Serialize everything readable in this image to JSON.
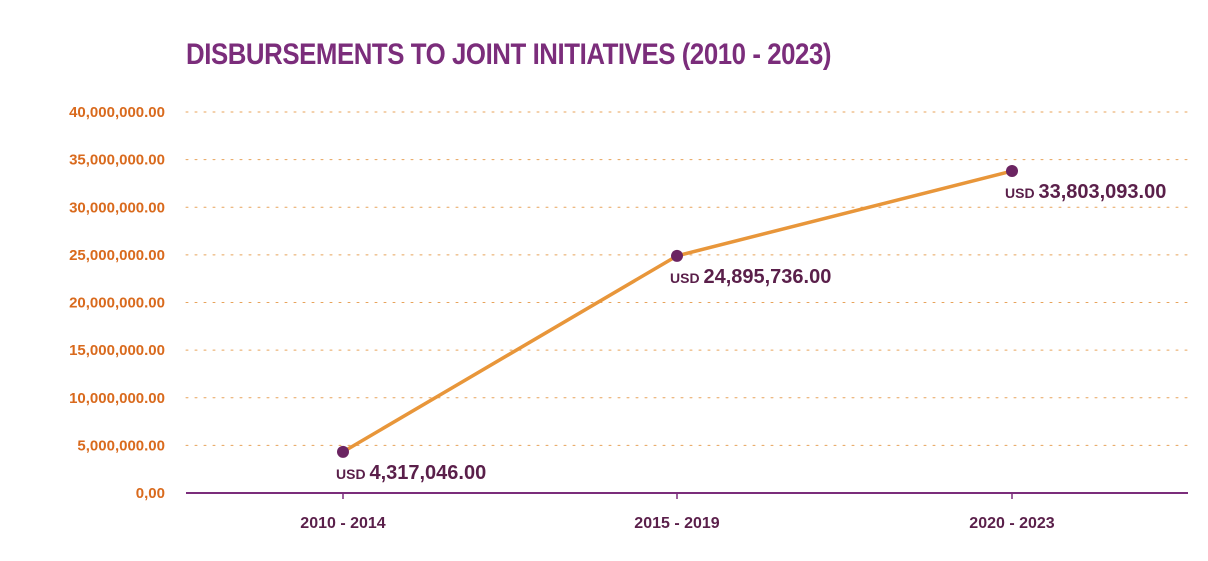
{
  "chart_data": {
    "type": "line",
    "title": "DISBURSEMENTS TO JOINT INITIATIVES (2010 - 2023)",
    "categories": [
      "2010 - 2014",
      "2015 - 2019",
      "2020 - 2023"
    ],
    "series": [
      {
        "values": [
          4317046.0,
          24895736.0,
          33803093.0
        ]
      }
    ],
    "data_labels": [
      {
        "currency": "USD",
        "value": "4,317,046.00"
      },
      {
        "currency": "USD",
        "value": "24,895,736.00"
      },
      {
        "currency": "USD",
        "value": "33,803,093.00"
      }
    ],
    "yticks": [
      "0,00",
      "5,000,000.00",
      "10,000,000.00",
      "15,000,000.00",
      "20,000,000.00",
      "25,000,000.00",
      "30,000,000.00",
      "35,000,000.00",
      "40,000,000.00"
    ],
    "ylim": [
      0,
      40000000
    ],
    "grid": true,
    "legend": "none",
    "colors": {
      "line": "#e8963a",
      "marker": "#6b2462",
      "axis": "#7b2d7b",
      "grid": "#e8a35a",
      "title": "#7b2d7b",
      "ytick_text": "#d96a1d",
      "label_text": "#5a1f4a"
    }
  }
}
